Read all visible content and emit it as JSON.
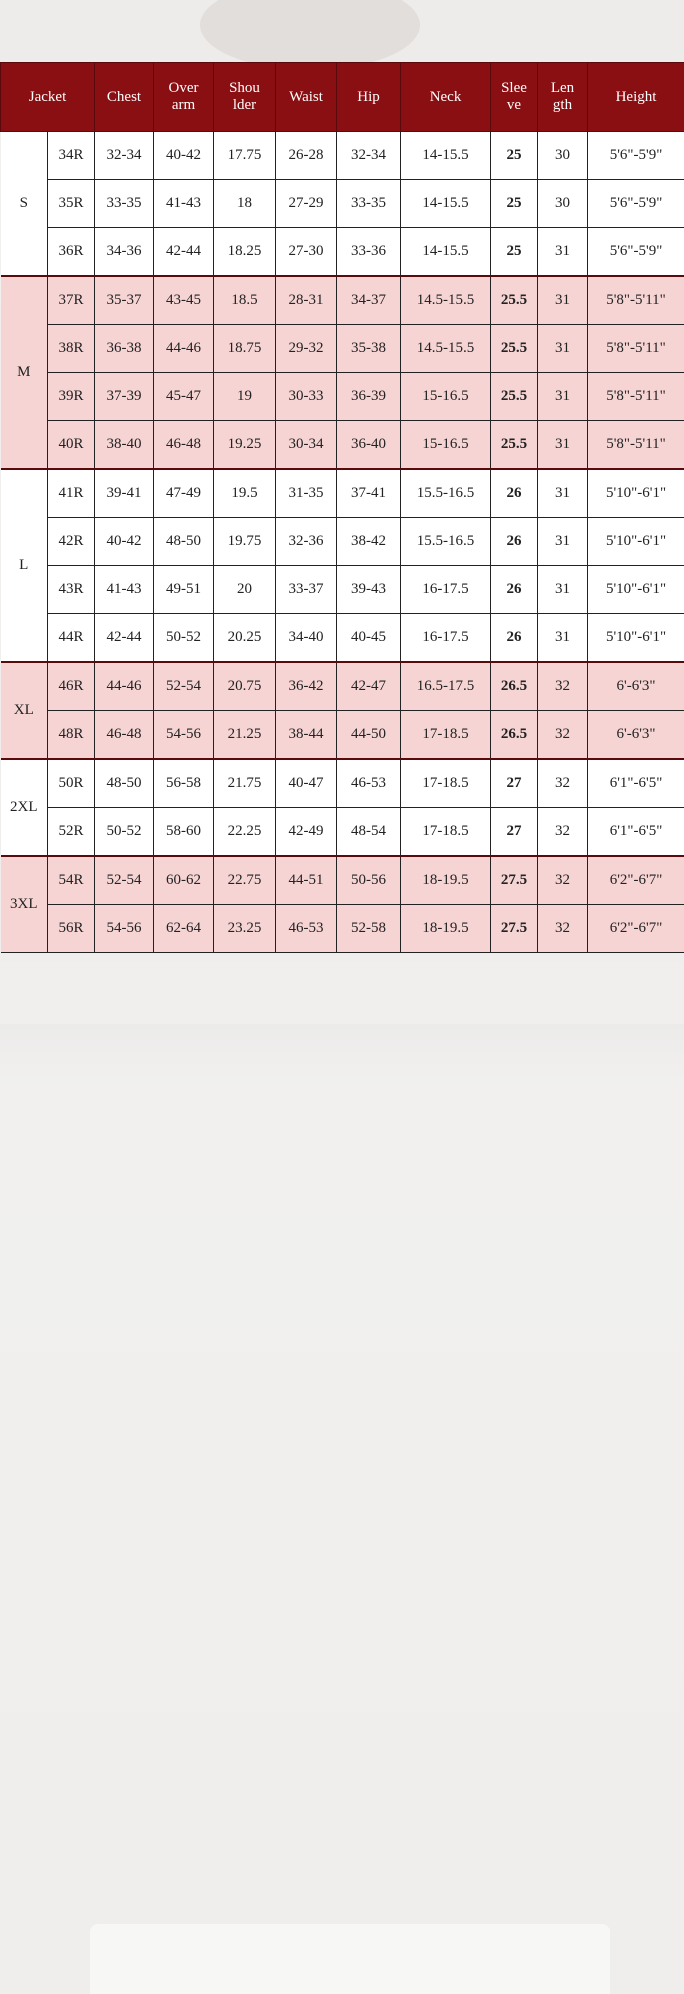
{
  "colors": {
    "header": "#8a0f13",
    "pink": "#f7d4d4",
    "white": "#ffffff"
  },
  "headers": [
    "Jacket",
    "Chest",
    "Over arm",
    "Shou lder",
    "Waist",
    "Hip",
    "Neck",
    "Slee ve",
    "Len gth",
    "Height"
  ],
  "groups": [
    {
      "size": "S",
      "shade": "white",
      "rows": [
        [
          "34R",
          "32-34",
          "40-42",
          "17.75",
          "26-28",
          "32-34",
          "14-15.5",
          "25",
          "30",
          "5'6\"-5'9\""
        ],
        [
          "35R",
          "33-35",
          "41-43",
          "18",
          "27-29",
          "33-35",
          "14-15.5",
          "25",
          "30",
          "5'6\"-5'9\""
        ],
        [
          "36R",
          "34-36",
          "42-44",
          "18.25",
          "27-30",
          "33-36",
          "14-15.5",
          "25",
          "31",
          "5'6\"-5'9\""
        ]
      ]
    },
    {
      "size": "M",
      "shade": "pink",
      "rows": [
        [
          "37R",
          "35-37",
          "43-45",
          "18.5",
          "28-31",
          "34-37",
          "14.5-15.5",
          "25.5",
          "31",
          "5'8\"-5'11\""
        ],
        [
          "38R",
          "36-38",
          "44-46",
          "18.75",
          "29-32",
          "35-38",
          "14.5-15.5",
          "25.5",
          "31",
          "5'8\"-5'11\""
        ],
        [
          "39R",
          "37-39",
          "45-47",
          "19",
          "30-33",
          "36-39",
          "15-16.5",
          "25.5",
          "31",
          "5'8\"-5'11\""
        ],
        [
          "40R",
          "38-40",
          "46-48",
          "19.25",
          "30-34",
          "36-40",
          "15-16.5",
          "25.5",
          "31",
          "5'8\"-5'11\""
        ]
      ]
    },
    {
      "size": "L",
      "shade": "white",
      "rows": [
        [
          "41R",
          "39-41",
          "47-49",
          "19.5",
          "31-35",
          "37-41",
          "15.5-16.5",
          "26",
          "31",
          "5'10\"-6'1\""
        ],
        [
          "42R",
          "40-42",
          "48-50",
          "19.75",
          "32-36",
          "38-42",
          "15.5-16.5",
          "26",
          "31",
          "5'10\"-6'1\""
        ],
        [
          "43R",
          "41-43",
          "49-51",
          "20",
          "33-37",
          "39-43",
          "16-17.5",
          "26",
          "31",
          "5'10\"-6'1\""
        ],
        [
          "44R",
          "42-44",
          "50-52",
          "20.25",
          "34-40",
          "40-45",
          "16-17.5",
          "26",
          "31",
          "5'10\"-6'1\""
        ]
      ]
    },
    {
      "size": "XL",
      "shade": "pink",
      "rows": [
        [
          "46R",
          "44-46",
          "52-54",
          "20.75",
          "36-42",
          "42-47",
          "16.5-17.5",
          "26.5",
          "32",
          "6'-6'3\""
        ],
        [
          "48R",
          "46-48",
          "54-56",
          "21.25",
          "38-44",
          "44-50",
          "17-18.5",
          "26.5",
          "32",
          "6'-6'3\""
        ]
      ]
    },
    {
      "size": "2XL",
      "shade": "white",
      "rows": [
        [
          "50R",
          "48-50",
          "56-58",
          "21.75",
          "40-47",
          "46-53",
          "17-18.5",
          "27",
          "32",
          "6'1\"-6'5\""
        ],
        [
          "52R",
          "50-52",
          "58-60",
          "22.25",
          "42-49",
          "48-54",
          "17-18.5",
          "27",
          "32",
          "6'1\"-6'5\""
        ]
      ]
    },
    {
      "size": "3XL",
      "shade": "pink",
      "rows": [
        [
          "54R",
          "52-54",
          "60-62",
          "22.75",
          "44-51",
          "50-56",
          "18-19.5",
          "27.5",
          "32",
          "6'2\"-6'7\""
        ],
        [
          "56R",
          "54-56",
          "62-64",
          "23.25",
          "46-53",
          "52-58",
          "18-19.5",
          "27.5",
          "32",
          "6'2\"-6'7\""
        ]
      ]
    }
  ]
}
